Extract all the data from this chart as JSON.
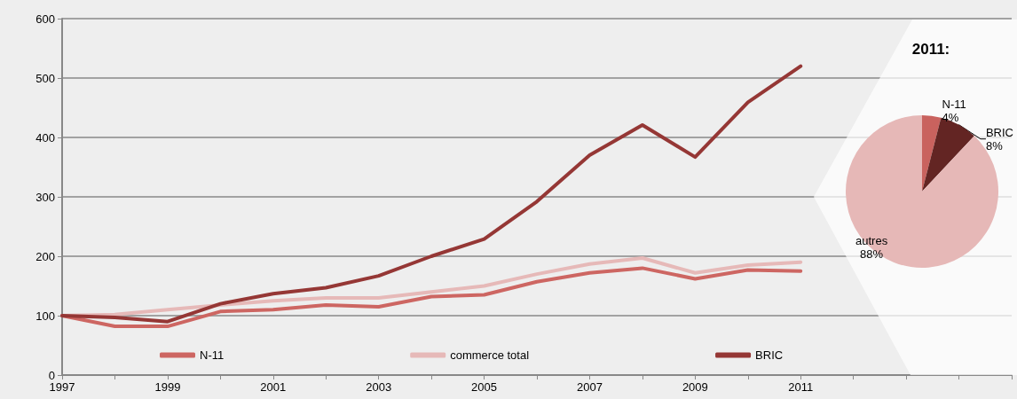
{
  "chart_data": [
    {
      "type": "line",
      "x": [
        1997,
        1998,
        1999,
        2000,
        2001,
        2002,
        2003,
        2004,
        2005,
        2006,
        2007,
        2008,
        2009,
        2010,
        2011
      ],
      "series": [
        {
          "name": "N-11",
          "color": "#cd6662",
          "values": [
            100,
            82,
            82,
            107,
            110,
            118,
            115,
            132,
            135,
            157,
            172,
            180,
            162,
            177,
            175
          ]
        },
        {
          "name": "commerce total",
          "color": "#e6b9b8",
          "values": [
            100,
            102,
            110,
            118,
            125,
            130,
            130,
            140,
            150,
            170,
            187,
            197,
            172,
            185,
            190
          ]
        },
        {
          "name": "BRIC",
          "color": "#953735",
          "values": [
            100,
            97,
            90,
            120,
            137,
            147,
            167,
            200,
            229,
            292,
            370,
            421,
            367,
            459,
            520
          ]
        }
      ],
      "xlim": [
        1997,
        2015
      ],
      "xticks": [
        1997,
        {
          "value": 1998,
          "label": null
        },
        1999,
        {
          "value": 2000,
          "label": null
        },
        2001,
        {
          "value": 2002,
          "label": null
        },
        2003,
        {
          "value": 2004,
          "label": null
        },
        2005,
        {
          "value": 2006,
          "label": null
        },
        2007,
        {
          "value": 2008,
          "label": null
        },
        2009,
        {
          "value": 2010,
          "label": null
        },
        2011,
        {
          "value": 2012,
          "label": null
        },
        {
          "value": 2013,
          "label": null
        },
        {
          "value": 2014,
          "label": null
        },
        {
          "value": 2015,
          "label": null
        }
      ],
      "ylim": [
        0,
        600
      ],
      "yticks": [
        0,
        100,
        200,
        300,
        400,
        500,
        600
      ],
      "grid": "y",
      "legend": "bottom",
      "marker": "none",
      "line_style": "solid"
    },
    {
      "type": "pie",
      "title": "2011:",
      "categories": [
        "N-11",
        "BRIC",
        "autres"
      ],
      "values": [
        4,
        8,
        88
      ],
      "colors": [
        "#c9625e",
        "#632523",
        "#e6b8b7"
      ],
      "value_labels": [
        "4%",
        "8%",
        "88%"
      ],
      "legend": false
    }
  ]
}
